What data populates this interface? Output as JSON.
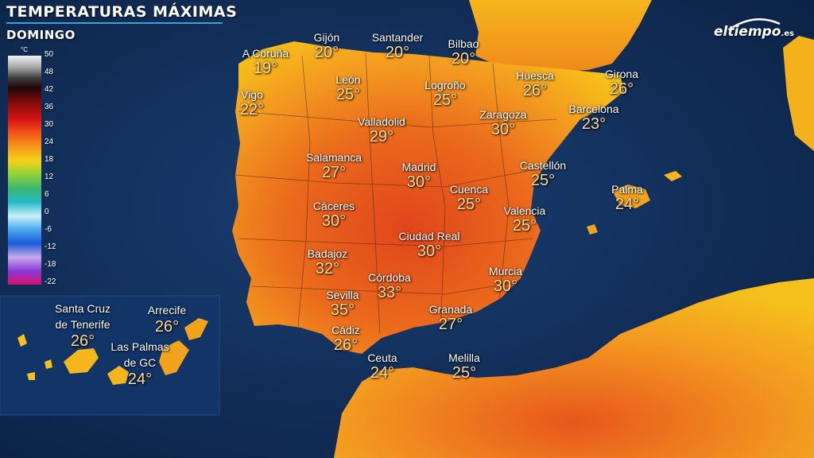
{
  "header": {
    "title": "TEMPERATURAS MÁXIMAS",
    "subtitle": "DOMINGO"
  },
  "logo": {
    "text": "eltiempo",
    "suffix": ".es"
  },
  "legend": {
    "unit": "°C",
    "ticks": [
      "50",
      "48",
      "42",
      "36",
      "30",
      "24",
      "18",
      "12",
      "6",
      "0",
      "-6",
      "-12",
      "-18",
      "-22"
    ]
  },
  "cities": [
    {
      "name": "A Coruña",
      "temp": "19°"
    },
    {
      "name": "Gijón",
      "temp": "20°"
    },
    {
      "name": "Santander",
      "temp": "20°"
    },
    {
      "name": "Bilbao",
      "temp": "20°"
    },
    {
      "name": "León",
      "temp": "25°"
    },
    {
      "name": "Logroño",
      "temp": "25°"
    },
    {
      "name": "Huesca",
      "temp": "26°"
    },
    {
      "name": "Girona",
      "temp": "26°"
    },
    {
      "name": "Vigo",
      "temp": "22°"
    },
    {
      "name": "Valladolid",
      "temp": "29°"
    },
    {
      "name": "Zaragoza",
      "temp": "30°"
    },
    {
      "name": "Barcelona",
      "temp": "23°"
    },
    {
      "name": "Salamanca",
      "temp": "27°"
    },
    {
      "name": "Madrid",
      "temp": "30°"
    },
    {
      "name": "Castellón",
      "temp": "25°"
    },
    {
      "name": "Cuenca",
      "temp": "25°"
    },
    {
      "name": "Palma",
      "temp": "24°"
    },
    {
      "name": "Cáceres",
      "temp": "30°"
    },
    {
      "name": "Valencia",
      "temp": "25°"
    },
    {
      "name": "Ciudad Real",
      "temp": "30°"
    },
    {
      "name": "Badajoz",
      "temp": "32°"
    },
    {
      "name": "Córdoba",
      "temp": "33°"
    },
    {
      "name": "Murcia",
      "temp": "30°"
    },
    {
      "name": "Sevilla",
      "temp": "35°"
    },
    {
      "name": "Granada",
      "temp": "27°"
    },
    {
      "name": "Cádiz",
      "temp": "26°"
    },
    {
      "name": "Ceuta",
      "temp": "24°"
    },
    {
      "name": "Melilla",
      "temp": "25°"
    }
  ],
  "canary": [
    {
      "name_lines": [
        "Santa Cruz",
        "de Tenerife"
      ],
      "temp": "26°"
    },
    {
      "name_lines": [
        "Arrecife"
      ],
      "temp": "26°"
    },
    {
      "name_lines": [
        "Las Palmas",
        "de GC"
      ],
      "temp": "24°"
    }
  ],
  "colors": {
    "sea": "#0e2a52",
    "hot": "#e0451c",
    "warm": "#f08a1c",
    "mild": "#f7c21a",
    "cool": "#a8d23a"
  }
}
